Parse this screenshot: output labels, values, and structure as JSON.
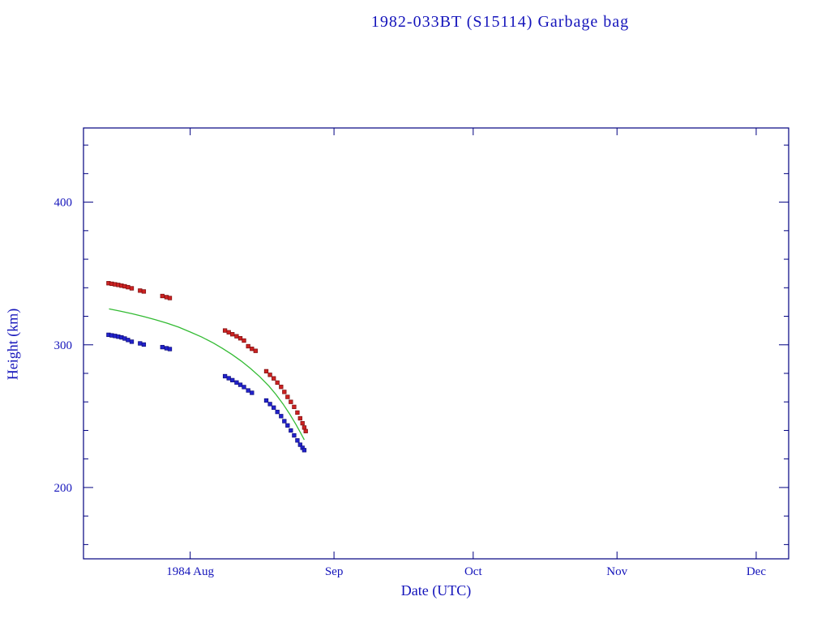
{
  "chart_data": {
    "type": "scatter",
    "title": "1982-033BT (S15114) Garbage bag",
    "xlabel": "Date (UTC)",
    "ylabel": "Height (km)",
    "grid": false,
    "legend": "none",
    "x_axis": {
      "unit": "days-since-1984-07-01",
      "lim": [
        8,
        160
      ],
      "ticks": [
        {
          "v": 31,
          "label": "1984 Aug"
        },
        {
          "v": 62,
          "label": "Sep"
        },
        {
          "v": 92,
          "label": "Oct"
        },
        {
          "v": 123,
          "label": "Nov"
        },
        {
          "v": 153,
          "label": "Dec"
        }
      ]
    },
    "y_axis": {
      "lim": [
        150,
        452
      ],
      "major_ticks": [
        200,
        300,
        400
      ],
      "minor_step": 20
    },
    "colors": {
      "frame": "#000080",
      "text": "#1414bb",
      "apogee": "#cc2222",
      "perigee": "#2222cc",
      "model": "#33bb33"
    },
    "series": [
      {
        "name": "apogee-height",
        "type": "scatter",
        "marker": "square",
        "color": "#cc2222",
        "edge": "#7a0f0f",
        "points": [
          [
            13.4,
            343.2
          ],
          [
            14.1,
            342.8
          ],
          [
            14.8,
            342.4
          ],
          [
            15.5,
            342.0
          ],
          [
            16.2,
            341.5
          ],
          [
            16.9,
            341.0
          ],
          [
            17.6,
            340.4
          ],
          [
            18.4,
            339.6
          ],
          [
            20.2,
            338.0
          ],
          [
            21.0,
            337.4
          ],
          [
            25.0,
            334.2
          ],
          [
            25.9,
            333.4
          ],
          [
            26.6,
            332.8
          ],
          [
            38.5,
            310.0
          ],
          [
            39.3,
            308.8
          ],
          [
            40.1,
            307.4
          ],
          [
            41.0,
            306.0
          ],
          [
            41.8,
            304.6
          ],
          [
            42.6,
            303.0
          ],
          [
            43.5,
            299.0
          ],
          [
            44.3,
            297.2
          ],
          [
            45.1,
            295.8
          ],
          [
            47.4,
            281.5
          ],
          [
            48.2,
            279.0
          ],
          [
            49.0,
            276.5
          ],
          [
            49.8,
            273.5
          ],
          [
            50.6,
            270.5
          ],
          [
            51.3,
            267.0
          ],
          [
            52.0,
            263.5
          ],
          [
            52.7,
            260.0
          ],
          [
            53.4,
            256.5
          ],
          [
            54.1,
            252.5
          ],
          [
            54.7,
            248.5
          ],
          [
            55.2,
            245.0
          ],
          [
            55.6,
            242.0
          ],
          [
            55.9,
            239.5
          ]
        ]
      },
      {
        "name": "perigee-height",
        "type": "scatter",
        "marker": "square",
        "color": "#2222cc",
        "edge": "#0f0f7a",
        "points": [
          [
            13.4,
            307.0
          ],
          [
            14.1,
            306.6
          ],
          [
            14.8,
            306.2
          ],
          [
            15.5,
            305.7
          ],
          [
            16.2,
            305.2
          ],
          [
            16.9,
            304.4
          ],
          [
            17.6,
            303.4
          ],
          [
            18.4,
            302.2
          ],
          [
            20.2,
            301.0
          ],
          [
            21.0,
            300.2
          ],
          [
            25.0,
            298.4
          ],
          [
            25.9,
            297.6
          ],
          [
            26.6,
            297.0
          ],
          [
            38.5,
            278.0
          ],
          [
            39.3,
            276.6
          ],
          [
            40.1,
            275.2
          ],
          [
            41.0,
            273.6
          ],
          [
            41.8,
            272.0
          ],
          [
            42.6,
            270.4
          ],
          [
            43.5,
            268.0
          ],
          [
            44.3,
            266.4
          ],
          [
            47.4,
            261.0
          ],
          [
            48.2,
            258.5
          ],
          [
            49.0,
            256.0
          ],
          [
            49.8,
            253.0
          ],
          [
            50.6,
            250.0
          ],
          [
            51.3,
            246.5
          ],
          [
            52.0,
            243.5
          ],
          [
            52.7,
            240.0
          ],
          [
            53.4,
            236.5
          ],
          [
            54.1,
            233.0
          ],
          [
            54.7,
            230.0
          ],
          [
            55.2,
            227.8
          ],
          [
            55.6,
            226.2
          ]
        ]
      },
      {
        "name": "mean-height-model",
        "type": "line",
        "color": "#33bb33",
        "points": [
          [
            13.5,
            325.2
          ],
          [
            16.0,
            323.6
          ],
          [
            18.5,
            321.8
          ],
          [
            21.0,
            319.8
          ],
          [
            23.5,
            317.6
          ],
          [
            26.0,
            315.2
          ],
          [
            28.5,
            312.4
          ],
          [
            31.0,
            309.0
          ],
          [
            33.5,
            305.4
          ],
          [
            36.0,
            301.2
          ],
          [
            38.0,
            297.4
          ],
          [
            40.0,
            293.2
          ],
          [
            42.0,
            288.6
          ],
          [
            44.0,
            283.4
          ],
          [
            46.0,
            277.6
          ],
          [
            48.0,
            271.0
          ],
          [
            49.5,
            265.2
          ],
          [
            51.0,
            258.6
          ],
          [
            52.5,
            251.2
          ],
          [
            53.8,
            244.2
          ],
          [
            54.8,
            238.2
          ],
          [
            55.6,
            233.4
          ]
        ]
      }
    ]
  }
}
